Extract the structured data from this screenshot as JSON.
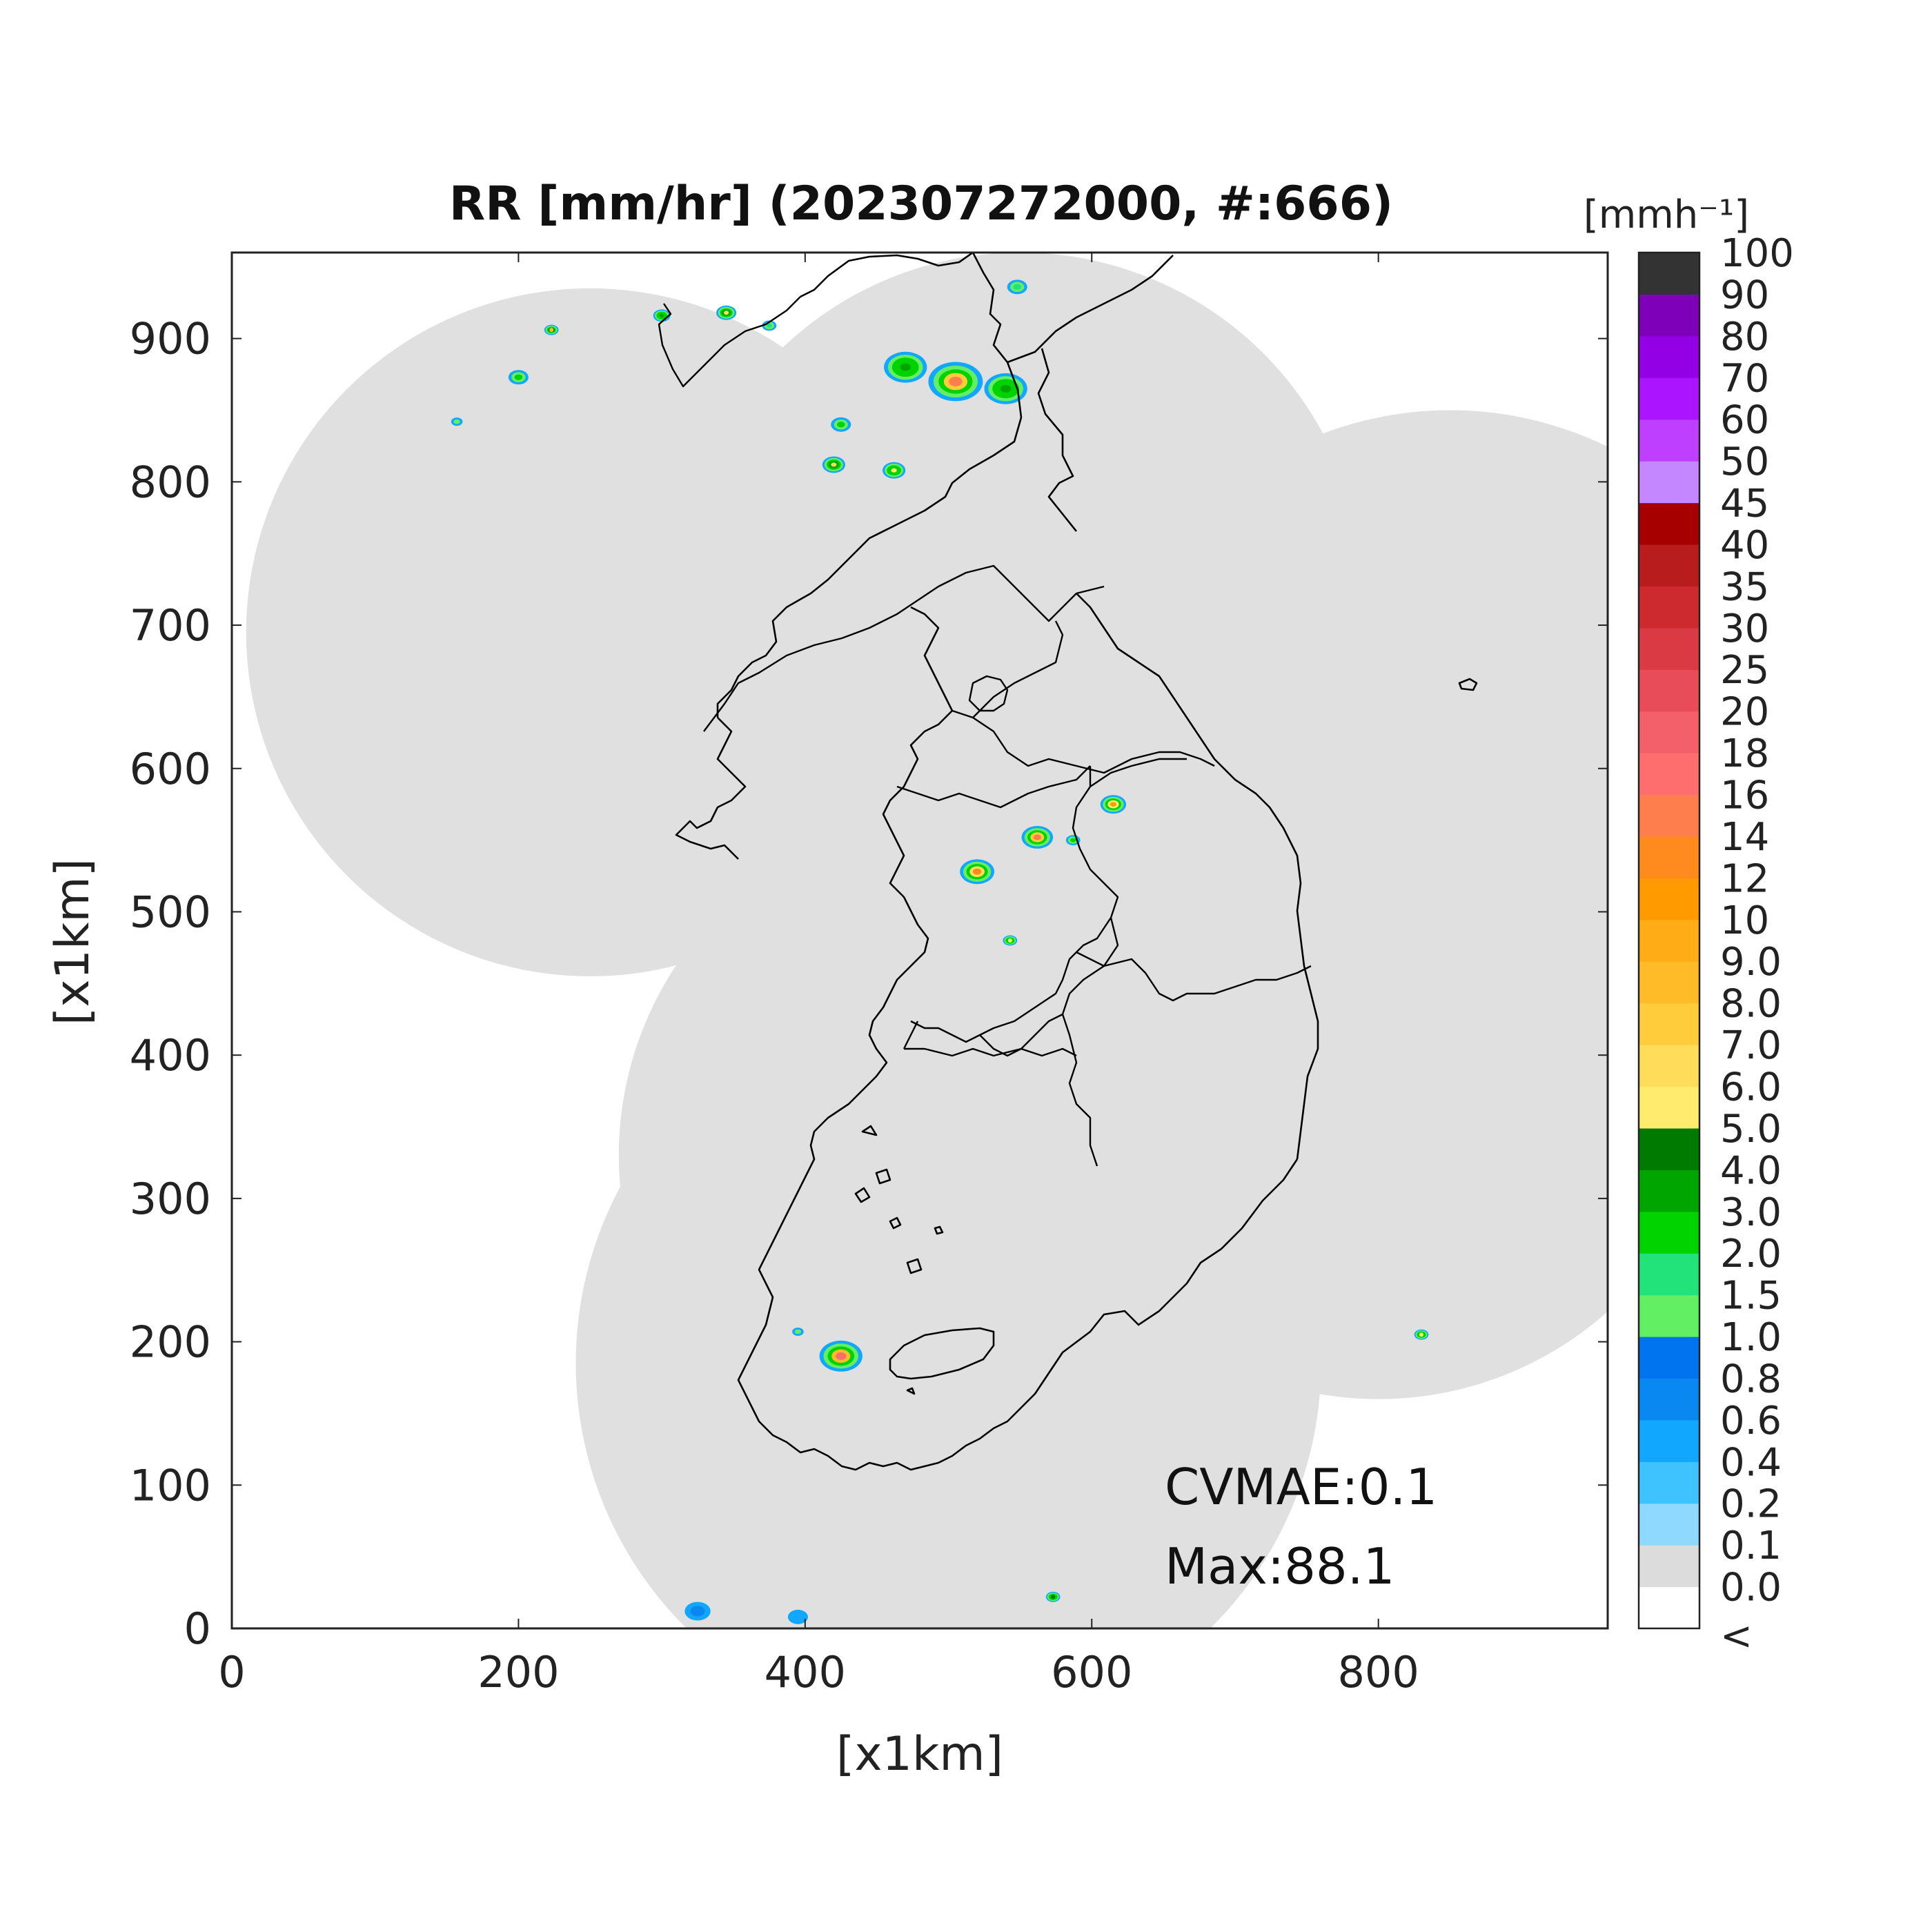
{
  "title": "RR [mm/hr] (202307272000, #:666)",
  "axes": {
    "xlabel": "[x1km]",
    "ylabel": "[x1km]",
    "xlim": [
      0,
      960
    ],
    "ylim": [
      0,
      960
    ],
    "xticks": [
      0,
      200,
      400,
      600,
      800
    ],
    "yticks": [
      0,
      100,
      200,
      300,
      400,
      500,
      600,
      700,
      800,
      900
    ]
  },
  "colorbar": {
    "unit_label": "[mmh⁻¹]",
    "under_label": "<",
    "labels": [
      "0.0",
      "0.1",
      "0.2",
      "0.4",
      "0.6",
      "0.8",
      "1.0",
      "1.5",
      "2.0",
      "3.0",
      "4.0",
      "5.0",
      "6.0",
      "7.0",
      "8.0",
      "9.0",
      "10",
      "12",
      "14",
      "16",
      "18",
      "20",
      "25",
      "30",
      "35",
      "40",
      "45",
      "50",
      "60",
      "70",
      "80",
      "90",
      "100"
    ],
    "colors": [
      "#ffffff",
      "#dcdcdc",
      "#8fd9ff",
      "#3fc3ff",
      "#12a7ff",
      "#0a88f2",
      "#0073ee",
      "#63ef63",
      "#22e37a",
      "#00d300",
      "#00a500",
      "#007a00",
      "#ffec6e",
      "#ffdc5a",
      "#ffcd3c",
      "#ffbc28",
      "#ffac16",
      "#ff9b00",
      "#ff8a1e",
      "#ff7e4e",
      "#ff6e6e",
      "#f4606a",
      "#e84c59",
      "#d93a43",
      "#cc2a2f",
      "#b91c1c",
      "#a60000",
      "#c487ff",
      "#be3fff",
      "#aa14ff",
      "#9400e6",
      "#7f00b9",
      "#333333"
    ]
  },
  "stats": {
    "cvmae": "CVMAE:0.1",
    "max": "Max:88.1"
  },
  "colors": {
    "coverage": "#e0e0e0",
    "background": "#ffffff",
    "coastline": "#000000"
  },
  "chart_data": {
    "type": "heatmap",
    "title": "RR [mm/hr] (202307272000, #:666)",
    "xlabel": "[x1km]",
    "ylabel": "[x1km]",
    "xlim": [
      0,
      960
    ],
    "ylim": [
      0,
      960
    ],
    "unit": "mm/hr",
    "max_value": 88.1,
    "cvmae": 0.1,
    "coverage_disks": [
      {
        "center": [
          250,
          695
        ],
        "radius_km": 240
      },
      {
        "center": [
          550,
          720
        ],
        "radius_km": 240
      },
      {
        "center": [
          850,
          600
        ],
        "radius_km": 250
      },
      {
        "center": [
          510,
          330
        ],
        "radius_km": 240
      },
      {
        "center": [
          500,
          185
        ],
        "radius_km": 260
      },
      {
        "center": [
          800,
          400
        ],
        "radius_km": 240
      }
    ],
    "rain_cells": [
      {
        "x": 505,
        "y": 870,
        "peak": 14,
        "size_km": 38
      },
      {
        "x": 470,
        "y": 880,
        "peak": 3,
        "size_km": 30
      },
      {
        "x": 540,
        "y": 865,
        "peak": 3,
        "size_km": 30
      },
      {
        "x": 425,
        "y": 840,
        "peak": 2,
        "size_km": 14
      },
      {
        "x": 420,
        "y": 812,
        "peak": 6,
        "size_km": 16
      },
      {
        "x": 462,
        "y": 808,
        "peak": 5,
        "size_km": 16
      },
      {
        "x": 548,
        "y": 936,
        "peak": 1.5,
        "size_km": 14
      },
      {
        "x": 345,
        "y": 918,
        "peak": 6,
        "size_km": 14
      },
      {
        "x": 300,
        "y": 916,
        "peak": 3,
        "size_km": 12
      },
      {
        "x": 375,
        "y": 909,
        "peak": 1.5,
        "size_km": 10
      },
      {
        "x": 223,
        "y": 906,
        "peak": 8,
        "size_km": 10
      },
      {
        "x": 200,
        "y": 873,
        "peak": 2,
        "size_km": 14
      },
      {
        "x": 157,
        "y": 842,
        "peak": 1,
        "size_km": 8
      },
      {
        "x": 520,
        "y": 528,
        "peak": 12,
        "size_km": 24
      },
      {
        "x": 562,
        "y": 552,
        "peak": 14,
        "size_km": 22
      },
      {
        "x": 615,
        "y": 575,
        "peak": 10,
        "size_km": 18
      },
      {
        "x": 587,
        "y": 550,
        "peak": 2,
        "size_km": 10
      },
      {
        "x": 543,
        "y": 480,
        "peak": 5,
        "size_km": 10
      },
      {
        "x": 425,
        "y": 190,
        "peak": 16,
        "size_km": 30
      },
      {
        "x": 395,
        "y": 207,
        "peak": 1,
        "size_km": 8
      },
      {
        "x": 830,
        "y": 205,
        "peak": 5,
        "size_km": 10
      },
      {
        "x": 573,
        "y": 22,
        "peak": 4,
        "size_km": 10
      },
      {
        "x": 325,
        "y": 12,
        "peak": 0.6,
        "size_km": 18
      },
      {
        "x": 395,
        "y": 8,
        "peak": 0.4,
        "size_km": 14
      }
    ]
  }
}
